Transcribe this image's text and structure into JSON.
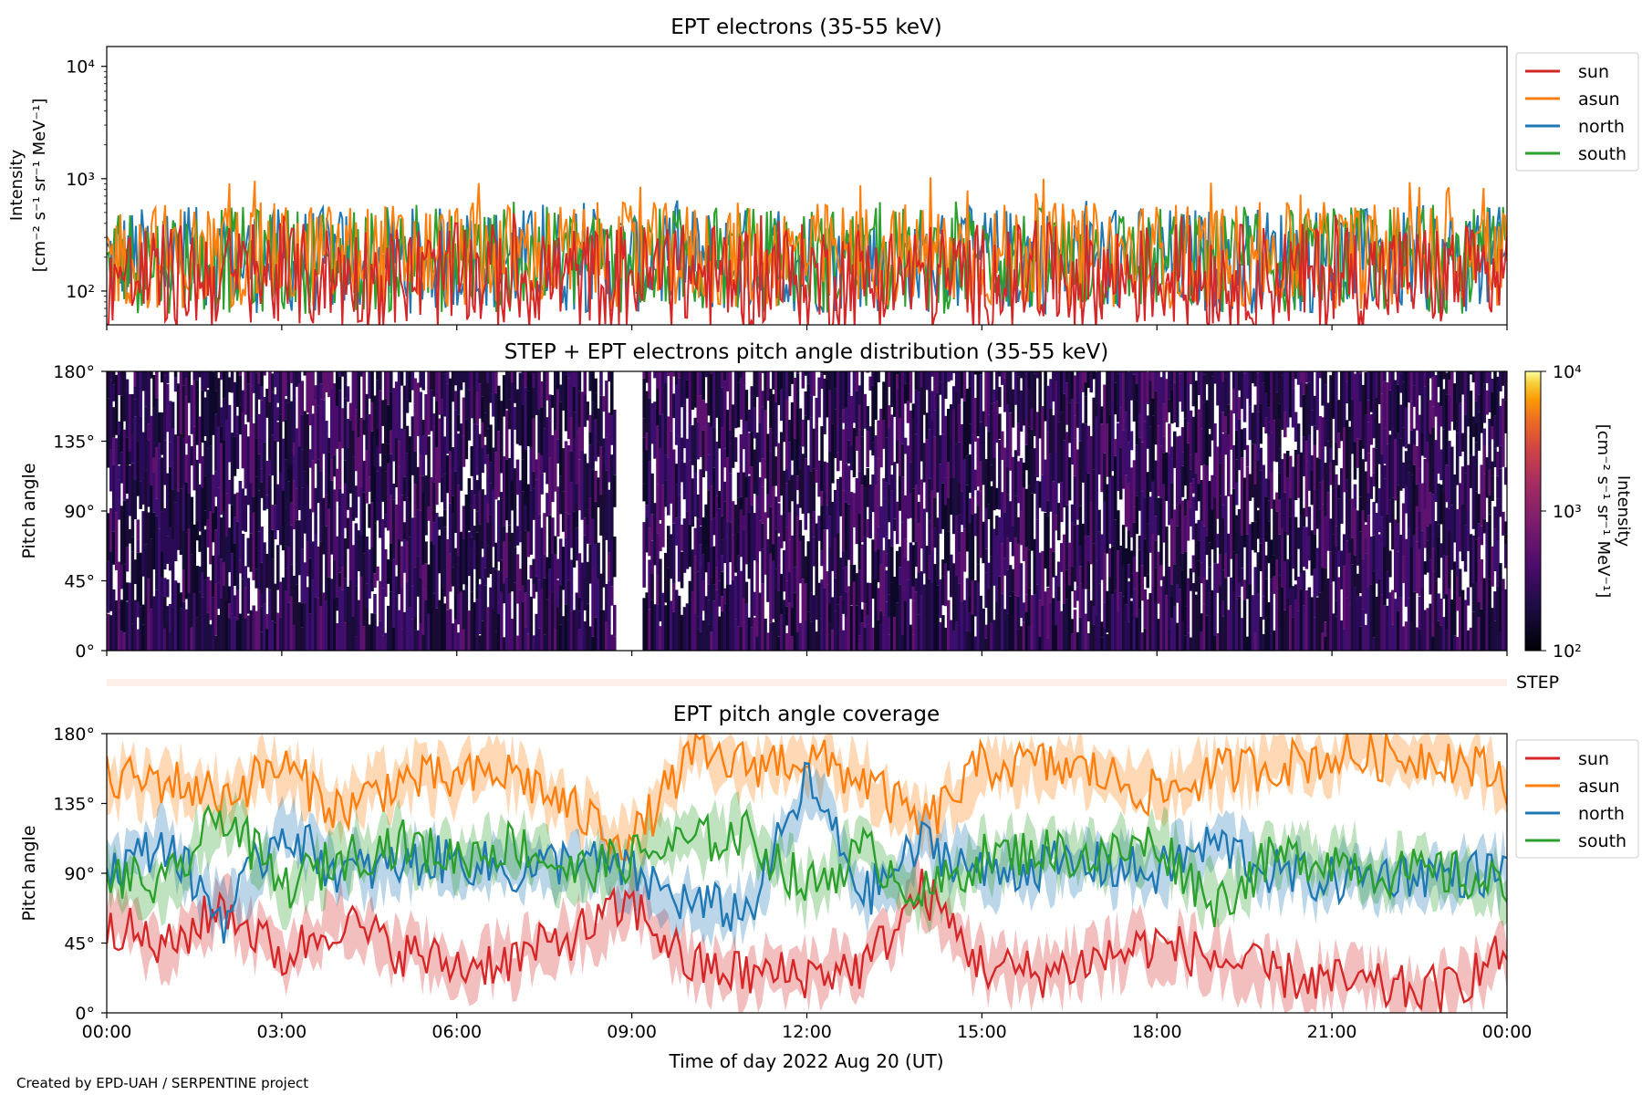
{
  "figure": {
    "credit": "Created by EPD-UAH / SERPENTINE project",
    "xlabel": "Time of day 2022 Aug 20 (UT)",
    "xticks": [
      "00:00",
      "03:00",
      "06:00",
      "09:00",
      "12:00",
      "15:00",
      "18:00",
      "21:00",
      "00:00"
    ]
  },
  "chart_data": [
    {
      "type": "line",
      "title": "EPT electrons (35-55 keV)",
      "ylabel_line1": "Intensity",
      "ylabel_line2": "[cm⁻² s⁻¹ sr⁻¹ MeV⁻¹]",
      "yscale": "log",
      "ylim": [
        50,
        15000
      ],
      "yticks": [
        {
          "value": 100,
          "label": "10²"
        },
        {
          "value": 1000,
          "label": "10³"
        },
        {
          "value": 10000,
          "label": "10⁴"
        }
      ],
      "xlim_hours": [
        0,
        24
      ],
      "series": [
        {
          "name": "sun",
          "color": "#d62728",
          "typical": 150,
          "peak": 500
        },
        {
          "name": "asun",
          "color": "#ff7f0e",
          "typical": 230,
          "peak": 1050
        },
        {
          "name": "north",
          "color": "#1f77b4",
          "typical": 210,
          "peak": 650
        },
        {
          "name": "south",
          "color": "#2ca02c",
          "typical": 210,
          "peak": 700
        }
      ],
      "legend": "right-outside"
    },
    {
      "type": "heatmap",
      "title": "STEP + EPT electrons pitch angle distribution (35-55 keV)",
      "ylabel": "Pitch angle",
      "ylim": [
        0,
        180
      ],
      "yticks": [
        "0°",
        "45°",
        "90°",
        "135°",
        "180°"
      ],
      "colorbar": {
        "label_line1": "Intensity",
        "label_line2": "[cm⁻² s⁻¹ sr⁻¹ MeV⁻¹]",
        "scale": "log",
        "range": [
          100,
          10000
        ],
        "ticks": [
          "10²",
          "10³",
          "10⁴"
        ],
        "colormap": "inferno"
      },
      "step_label": "STEP"
    },
    {
      "type": "line",
      "title": "EPT pitch angle coverage",
      "ylabel": "Pitch angle",
      "ylim": [
        0,
        180
      ],
      "yticks": [
        "0°",
        "45°",
        "90°",
        "135°",
        "180°"
      ],
      "xlim_hours": [
        0,
        24
      ],
      "shaded_band": "± spread",
      "series": [
        {
          "name": "sun",
          "color": "#d62728",
          "keypoints_hours": [
            0,
            1,
            2,
            3,
            4,
            5,
            6,
            7,
            8,
            9,
            10,
            11,
            12,
            13,
            14,
            15,
            16,
            17,
            18,
            19,
            20,
            21,
            22,
            23,
            24
          ],
          "values": [
            60,
            40,
            70,
            35,
            60,
            40,
            30,
            35,
            50,
            70,
            30,
            25,
            25,
            30,
            80,
            30,
            25,
            35,
            45,
            35,
            25,
            20,
            15,
            15,
            40
          ]
        },
        {
          "name": "asun",
          "color": "#ff7f0e",
          "keypoints_hours": [
            0,
            1,
            2,
            3,
            4,
            5,
            6,
            7,
            8,
            9,
            10,
            11,
            12,
            13,
            14,
            15,
            16,
            17,
            18,
            19,
            20,
            21,
            22,
            23,
            24
          ],
          "values": [
            150,
            150,
            140,
            160,
            130,
            150,
            150,
            155,
            130,
            110,
            165,
            160,
            165,
            150,
            120,
            160,
            160,
            155,
            140,
            155,
            160,
            165,
            165,
            165,
            150
          ]
        },
        {
          "name": "north",
          "color": "#1f77b4",
          "keypoints_hours": [
            0,
            1,
            2,
            3,
            4,
            5,
            6,
            7,
            8,
            9,
            10,
            11,
            12,
            13,
            14,
            15,
            16,
            17,
            18,
            19,
            20,
            21,
            22,
            23,
            24
          ],
          "values": [
            90,
            110,
            60,
            120,
            90,
            95,
            100,
            90,
            100,
            90,
            70,
            65,
            150,
            75,
            110,
            90,
            95,
            95,
            90,
            110,
            90,
            85,
            90,
            90,
            90
          ]
        },
        {
          "name": "south",
          "color": "#2ca02c",
          "keypoints_hours": [
            0,
            1,
            2,
            3,
            4,
            5,
            6,
            7,
            8,
            9,
            10,
            11,
            12,
            13,
            14,
            15,
            16,
            17,
            18,
            19,
            20,
            21,
            22,
            23,
            24
          ],
          "values": [
            90,
            80,
            130,
            80,
            100,
            110,
            100,
            110,
            90,
            100,
            110,
            115,
            80,
            105,
            75,
            100,
            105,
            100,
            110,
            70,
            100,
            100,
            90,
            90,
            80
          ]
        }
      ],
      "legend": "right-outside"
    }
  ]
}
